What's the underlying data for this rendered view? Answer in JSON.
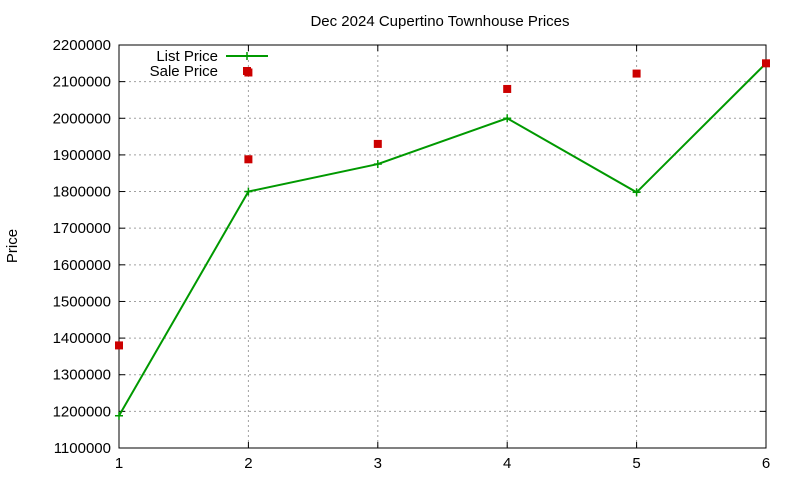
{
  "chart_data": {
    "type": "line",
    "title": "Dec 2024 Cupertino Townhouse Prices",
    "xlabel": "",
    "ylabel": "Price",
    "x": [
      1,
      2,
      3,
      4,
      5,
      6
    ],
    "xlim": [
      1,
      6
    ],
    "ylim": [
      1100000,
      2200000
    ],
    "xticks": [
      "1",
      "2",
      "3",
      "4",
      "5",
      "6"
    ],
    "yticks": [
      "1100000",
      "1200000",
      "1300000",
      "1400000",
      "1500000",
      "1600000",
      "1700000",
      "1800000",
      "1900000",
      "2000000",
      "2100000",
      "2200000"
    ],
    "grid": true,
    "legend_position": "top-left",
    "series": [
      {
        "name": "List Price",
        "style": "line-with-plus-markers",
        "color": "#009900",
        "x": [
          1,
          2,
          3,
          4,
          5,
          6
        ],
        "values": [
          1188000,
          1800000,
          1875000,
          2000000,
          1798000,
          2150000
        ]
      },
      {
        "name": "Sale Price",
        "style": "square-markers",
        "color": "#cc0000",
        "x": [
          1,
          2,
          2,
          3,
          4,
          5,
          6
        ],
        "values": [
          1380000,
          1888000,
          2125000,
          1930000,
          2080000,
          2122000,
          2150000
        ]
      }
    ]
  }
}
